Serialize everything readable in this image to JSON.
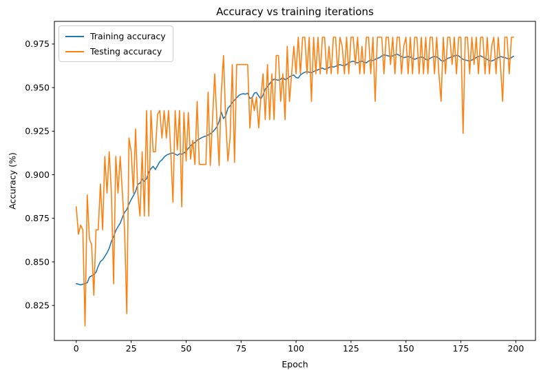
{
  "chart_data": {
    "type": "line",
    "title": "Accuracy vs training iterations",
    "xlabel": "Epoch",
    "ylabel": "Accuracy (%)",
    "x_ticks": [
      0,
      25,
      50,
      75,
      100,
      125,
      150,
      175,
      200
    ],
    "y_ticks": [
      0.825,
      0.85,
      0.875,
      0.9,
      0.925,
      0.95,
      0.975
    ],
    "y_tick_decimals": 3,
    "xlim": [
      -9.95,
      208.95
    ],
    "ylim": [
      0.8049,
      0.988
    ],
    "grid": false,
    "legend_position": "upper-left",
    "x_start": 0,
    "x_step": 1,
    "axis_color": "#000000",
    "series": [
      {
        "name": "Training accuracy",
        "color": "#1f77b4",
        "values": [
          0.8375,
          0.8372,
          0.8368,
          0.8372,
          0.8375,
          0.838,
          0.8412,
          0.842,
          0.8428,
          0.844,
          0.8475,
          0.8502,
          0.8512,
          0.8532,
          0.8552,
          0.8578,
          0.8618,
          0.8645,
          0.868,
          0.8702,
          0.8722,
          0.8755,
          0.8785,
          0.88,
          0.8832,
          0.8858,
          0.888,
          0.8905,
          0.8945,
          0.8952,
          0.8975,
          0.8962,
          0.8978,
          0.9015,
          0.9035,
          0.9048,
          0.903,
          0.9052,
          0.9075,
          0.9085,
          0.9102,
          0.9112,
          0.9118,
          0.9122,
          0.9125,
          0.9118,
          0.9112,
          0.912,
          0.9118,
          0.9125,
          0.9135,
          0.9152,
          0.9165,
          0.9178,
          0.9185,
          0.9198,
          0.9205,
          0.9212,
          0.9218,
          0.9222,
          0.9228,
          0.9235,
          0.9245,
          0.9258,
          0.9275,
          0.9305,
          0.936,
          0.9322,
          0.9338,
          0.9382,
          0.9395,
          0.9415,
          0.9428,
          0.9442,
          0.9455,
          0.9462,
          0.9465,
          0.9462,
          0.9468,
          0.9438,
          0.9442,
          0.9468,
          0.9472,
          0.9452,
          0.9435,
          0.9458,
          0.9492,
          0.9505,
          0.9522,
          0.9538,
          0.9548,
          0.9545,
          0.9542,
          0.9548,
          0.9558,
          0.9545,
          0.9552,
          0.9562,
          0.9568,
          0.9572,
          0.9558,
          0.9555,
          0.9572,
          0.9582,
          0.9588,
          0.9592,
          0.9588,
          0.9585,
          0.9592,
          0.9598,
          0.9602,
          0.9608,
          0.9612,
          0.9605,
          0.9608,
          0.9615,
          0.9622,
          0.9618,
          0.9622,
          0.9628,
          0.9632,
          0.9628,
          0.9625,
          0.9632,
          0.9642,
          0.9648,
          0.9652,
          0.9645,
          0.9642,
          0.9648,
          0.9652,
          0.9645,
          0.9642,
          0.9652,
          0.9658,
          0.9655,
          0.9662,
          0.9668,
          0.9672,
          0.9682,
          0.9688,
          0.9685,
          0.9682,
          0.9678,
          0.9682,
          0.9688,
          0.9692,
          0.9685,
          0.9678,
          0.9672,
          0.9675,
          0.9678,
          0.9675,
          0.9668,
          0.9662,
          0.9668,
          0.9672,
          0.9675,
          0.9672,
          0.9662,
          0.9658,
          0.9668,
          0.9675,
          0.9678,
          0.9675,
          0.9668,
          0.9655,
          0.9652,
          0.9658,
          0.9668,
          0.9672,
          0.9678,
          0.9682,
          0.9685,
          0.9682,
          0.9672,
          0.9662,
          0.9658,
          0.9655,
          0.9652,
          0.9658,
          0.9665,
          0.9672,
          0.9678,
          0.9682,
          0.9675,
          0.9668,
          0.9662,
          0.9655,
          0.9652,
          0.9658,
          0.9665,
          0.9672,
          0.9678,
          0.9675,
          0.9672,
          0.9668,
          0.9665,
          0.9672,
          0.968
        ]
      },
      {
        "name": "Testing accuracy",
        "color": "#ff7f0e",
        "values": [
          0.8816,
          0.8658,
          0.8711,
          0.8684,
          0.8132,
          0.8884,
          0.8632,
          0.8598,
          0.8308,
          0.8684,
          0.8684,
          0.8947,
          0.8684,
          0.9105,
          0.8895,
          0.9132,
          0.8895,
          0.8374,
          0.9105,
          0.8895,
          0.9105,
          0.8895,
          0.8684,
          0.8203,
          0.9211,
          0.9132,
          0.8895,
          0.9263,
          0.8895,
          0.8763,
          0.9132,
          0.8763,
          0.9368,
          0.8763,
          0.9368,
          0.9132,
          0.9132,
          0.9347,
          0.9368,
          0.9211,
          0.9368,
          0.9211,
          0.9368,
          0.9132,
          0.8842,
          0.9368,
          0.9143,
          0.9368,
          0.8816,
          0.9357,
          0.9079,
          0.9357,
          0.909,
          0.9197,
          0.9059,
          0.9421,
          0.9059,
          0.9059,
          0.9059,
          0.9059,
          0.9474,
          0.9053,
          0.9316,
          0.9579,
          0.9316,
          0.9053,
          0.9474,
          0.9684,
          0.9316,
          0.9079,
          0.9211,
          0.9632,
          0.9071,
          0.9632,
          0.9632,
          0.9632,
          0.9632,
          0.9632,
          0.9632,
          0.9268,
          0.9446,
          0.9368,
          0.9446,
          0.9268,
          0.9446,
          0.9579,
          0.9316,
          0.9632,
          0.9316,
          0.9579,
          0.9316,
          0.9684,
          0.9684,
          0.9421,
          0.9579,
          0.9316,
          0.9737,
          0.9421,
          0.9579,
          0.9737,
          0.9579,
          0.9789,
          0.9579,
          0.9789,
          0.9789,
          0.9579,
          0.9789,
          0.9421,
          0.9789,
          0.9579,
          0.9789,
          0.9579,
          0.9789,
          0.9789,
          0.9579,
          0.9737,
          0.9579,
          0.9789,
          0.9789,
          0.9579,
          0.9789,
          0.9737,
          0.9579,
          0.9789,
          0.9579,
          0.9789,
          0.9789,
          0.9632,
          0.9789,
          0.9579,
          0.9737,
          0.9579,
          0.9789,
          0.9789,
          0.9579,
          0.9789,
          0.9421,
          0.9789,
          0.9789,
          0.9789,
          0.9579,
          0.9789,
          0.9789,
          0.9632,
          0.9789,
          0.9579,
          0.9789,
          0.9789,
          0.9579,
          0.9737,
          0.9789,
          0.9579,
          0.9789,
          0.9579,
          0.9789,
          0.9789,
          0.9579,
          0.9789,
          0.9579,
          0.9789,
          0.9579,
          0.9789,
          0.9789,
          0.9579,
          0.9789,
          0.9579,
          0.9421,
          0.9789,
          0.9579,
          0.9789,
          0.9789,
          0.9632,
          0.9789,
          0.9579,
          0.9789,
          0.9789,
          0.9237,
          0.9789,
          0.9789,
          0.9579,
          0.9789,
          0.9632,
          0.9789,
          0.9579,
          0.9789,
          0.9789,
          0.9579,
          0.9789,
          0.9579,
          0.9737,
          0.9789,
          0.9579,
          0.9789,
          0.9632,
          0.9421,
          0.9789,
          0.9789,
          0.9579,
          0.9789,
          0.9789
        ]
      }
    ]
  }
}
